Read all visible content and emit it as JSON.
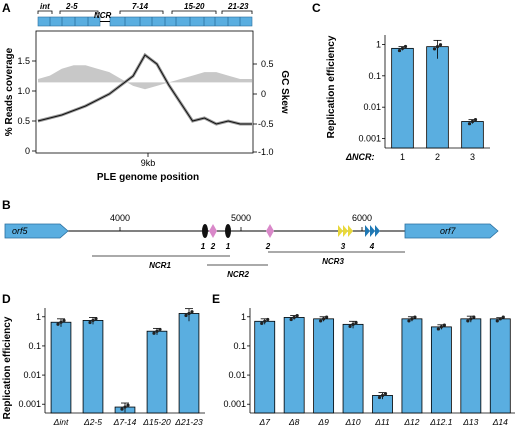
{
  "panels": {
    "A": {
      "letter": "A",
      "gene_labels": [
        "int",
        "2-5",
        "NCR",
        "7-14",
        "15-20",
        "21-23"
      ],
      "ylabel_left": "% Reads coverage",
      "ylabel_right": "GC Skew",
      "xlabel": "PLE genome position",
      "x_tick": "9kb",
      "y_left_ticks": [
        "0",
        "0.5",
        "1.0",
        "1.5"
      ],
      "y_right_ticks": [
        "-1.0",
        "-0.5",
        "0",
        "0.5"
      ]
    },
    "B": {
      "letter": "B",
      "positions": [
        "4000",
        "5000",
        "6000"
      ],
      "genes": [
        "orf5",
        "orf7"
      ],
      "element_labels": [
        "1",
        "2",
        "1",
        "2",
        "3",
        "4"
      ],
      "regions": [
        "NCR1",
        "NCR2",
        "NCR3"
      ]
    },
    "C": {
      "letter": "C",
      "ylabel": "Replication efficiency",
      "x_prefix": "ΔNCR:"
    },
    "D": {
      "letter": "D",
      "ylabel": "Replication efficiency"
    },
    "E": {
      "letter": "E"
    }
  },
  "chart_data": [
    {
      "id": "A",
      "type": "line",
      "xlabel": "PLE genome position",
      "ylabel": "% Reads coverage",
      "ylim": [
        0,
        2.0
      ],
      "y2label": "GC Skew",
      "y2lim": [
        -1.0,
        0.75
      ],
      "series": [
        {
          "name": "coverage",
          "x": [
            0,
            2,
            4,
            6,
            8,
            9,
            10,
            11,
            12,
            13,
            14,
            15,
            16,
            17,
            18
          ],
          "values": [
            0.5,
            0.6,
            0.75,
            0.95,
            1.25,
            1.6,
            1.45,
            1.1,
            0.8,
            0.5,
            0.55,
            0.45,
            0.5,
            0.45,
            0.45
          ]
        },
        {
          "name": "gc_skew",
          "x": [
            0,
            1,
            2,
            3,
            4,
            5,
            6,
            7,
            8,
            9,
            10,
            11,
            12,
            13,
            14,
            15,
            16,
            17,
            18
          ],
          "values": [
            0.05,
            0.1,
            0.2,
            0.25,
            0.25,
            0.2,
            0.15,
            0.05,
            -0.05,
            -0.1,
            -0.05,
            0.0,
            0.05,
            0.1,
            0.15,
            0.15,
            0.1,
            0.05,
            0.05
          ]
        }
      ]
    },
    {
      "id": "C",
      "type": "bar",
      "categories": [
        "1",
        "2",
        "3"
      ],
      "values": [
        0.75,
        0.85,
        0.0035
      ],
      "errors": [
        0.1,
        0.5,
        0.0005
      ],
      "ylabel": "Replication efficiency",
      "yscale": "log",
      "ylim": [
        0.0005,
        2
      ],
      "y_ticks": [
        "0.001",
        "0.01",
        "0.1",
        "1"
      ]
    },
    {
      "id": "D",
      "type": "bar",
      "categories": [
        "Δint",
        "Δ2-5",
        "Δ7-14",
        "Δ15-20",
        "Δ21-23"
      ],
      "values": [
        0.65,
        0.75,
        0.0008,
        0.32,
        1.3
      ],
      "errors": [
        0.2,
        0.2,
        0.0003,
        0.08,
        0.6
      ],
      "ylabel": "Replication efficiency",
      "yscale": "log",
      "ylim": [
        0.0005,
        2
      ],
      "y_ticks": [
        "0.001",
        "0.01",
        "0.1",
        "1"
      ]
    },
    {
      "id": "E",
      "type": "bar",
      "categories": [
        "Δ7",
        "Δ8",
        "Δ9",
        "Δ10",
        "Δ11",
        "Δ12",
        "Δ12.1",
        "Δ13",
        "Δ14"
      ],
      "values": [
        0.7,
        0.95,
        0.85,
        0.55,
        0.002,
        0.85,
        0.45,
        0.85,
        0.85
      ],
      "errors": [
        0.15,
        0.15,
        0.15,
        0.15,
        0.0005,
        0.15,
        0.08,
        0.2,
        0.08
      ],
      "yscale": "log",
      "ylim": [
        0.0005,
        2
      ],
      "y_ticks": [
        "0.001",
        "0.01",
        "0.1",
        "1"
      ]
    }
  ]
}
